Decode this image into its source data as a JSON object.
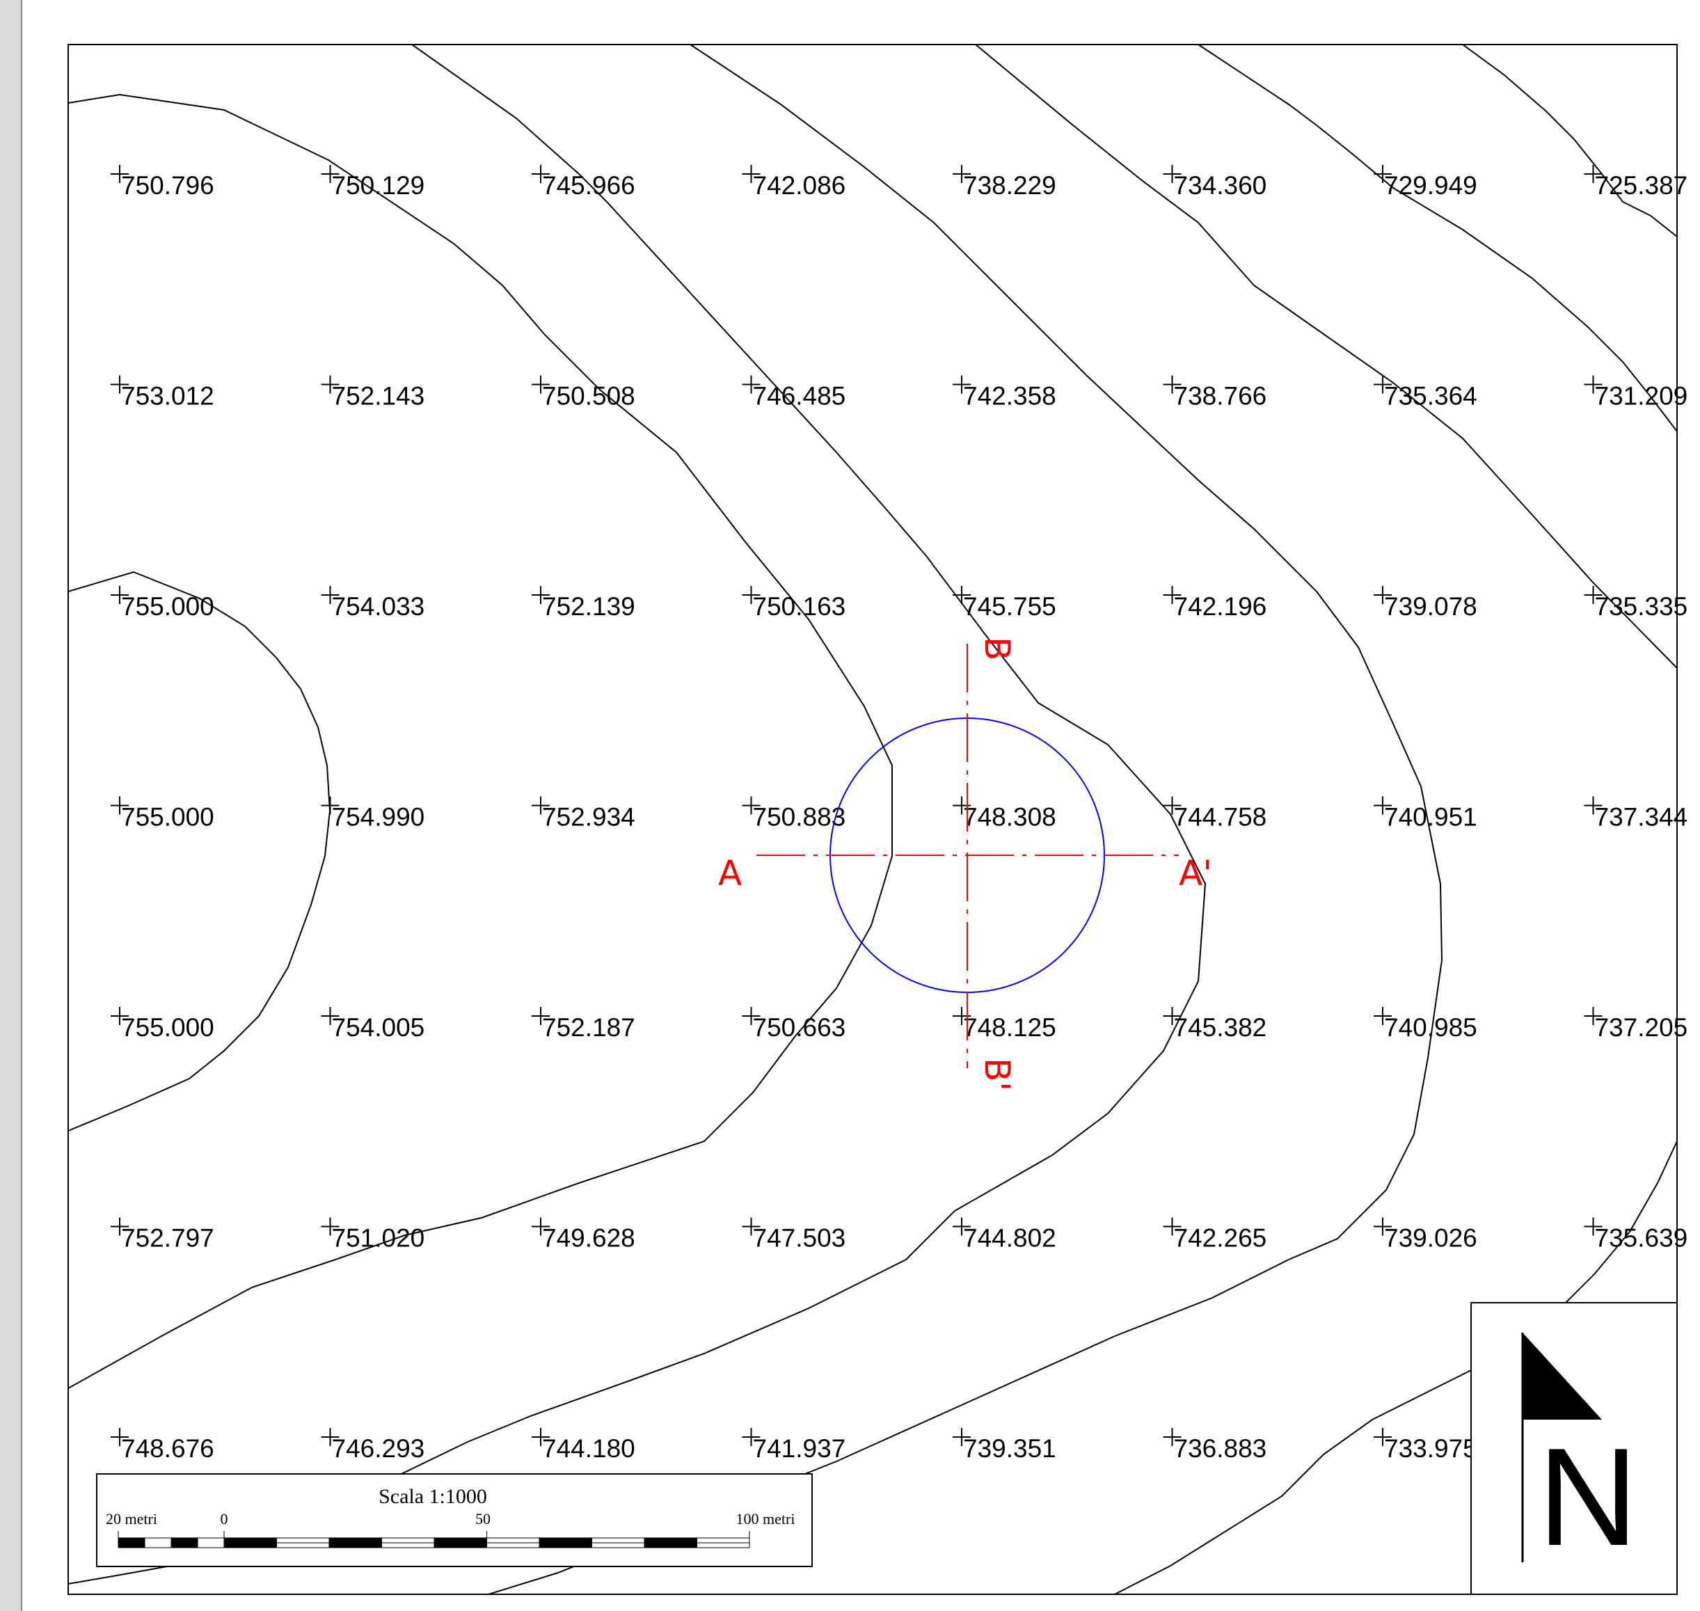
{
  "map": {
    "elevation_points": [
      {
        "row": 0,
        "col": 0,
        "value": "750.796"
      },
      {
        "row": 0,
        "col": 1,
        "value": "750.129"
      },
      {
        "row": 0,
        "col": 2,
        "value": "745.966"
      },
      {
        "row": 0,
        "col": 3,
        "value": "742.086"
      },
      {
        "row": 0,
        "col": 4,
        "value": "738.229"
      },
      {
        "row": 0,
        "col": 5,
        "value": "734.360"
      },
      {
        "row": 0,
        "col": 6,
        "value": "729.949"
      },
      {
        "row": 0,
        "col": 7,
        "value": "725.387"
      },
      {
        "row": 1,
        "col": 0,
        "value": "753.012"
      },
      {
        "row": 1,
        "col": 1,
        "value": "752.143"
      },
      {
        "row": 1,
        "col": 2,
        "value": "750.508"
      },
      {
        "row": 1,
        "col": 3,
        "value": "746.485"
      },
      {
        "row": 1,
        "col": 4,
        "value": "742.358"
      },
      {
        "row": 1,
        "col": 5,
        "value": "738.766"
      },
      {
        "row": 1,
        "col": 6,
        "value": "735.364"
      },
      {
        "row": 1,
        "col": 7,
        "value": "731.209"
      },
      {
        "row": 2,
        "col": 0,
        "value": "755.000"
      },
      {
        "row": 2,
        "col": 1,
        "value": "754.033"
      },
      {
        "row": 2,
        "col": 2,
        "value": "752.139"
      },
      {
        "row": 2,
        "col": 3,
        "value": "750.163"
      },
      {
        "row": 2,
        "col": 4,
        "value": "745.755"
      },
      {
        "row": 2,
        "col": 5,
        "value": "742.196"
      },
      {
        "row": 2,
        "col": 6,
        "value": "739.078"
      },
      {
        "row": 2,
        "col": 7,
        "value": "735.335"
      },
      {
        "row": 3,
        "col": 0,
        "value": "755.000"
      },
      {
        "row": 3,
        "col": 1,
        "value": "754.990"
      },
      {
        "row": 3,
        "col": 2,
        "value": "752.934"
      },
      {
        "row": 3,
        "col": 3,
        "value": "750.883"
      },
      {
        "row": 3,
        "col": 4,
        "value": "748.308"
      },
      {
        "row": 3,
        "col": 5,
        "value": "744.758"
      },
      {
        "row": 3,
        "col": 6,
        "value": "740.951"
      },
      {
        "row": 3,
        "col": 7,
        "value": "737.344"
      },
      {
        "row": 4,
        "col": 0,
        "value": "755.000"
      },
      {
        "row": 4,
        "col": 1,
        "value": "754.005"
      },
      {
        "row": 4,
        "col": 2,
        "value": "752.187"
      },
      {
        "row": 4,
        "col": 3,
        "value": "750.663"
      },
      {
        "row": 4,
        "col": 4,
        "value": "748.125"
      },
      {
        "row": 4,
        "col": 5,
        "value": "745.382"
      },
      {
        "row": 4,
        "col": 6,
        "value": "740.985"
      },
      {
        "row": 4,
        "col": 7,
        "value": "737.205"
      },
      {
        "row": 5,
        "col": 0,
        "value": "752.797"
      },
      {
        "row": 5,
        "col": 1,
        "value": "751.020"
      },
      {
        "row": 5,
        "col": 2,
        "value": "749.628"
      },
      {
        "row": 5,
        "col": 3,
        "value": "747.503"
      },
      {
        "row": 5,
        "col": 4,
        "value": "744.802"
      },
      {
        "row": 5,
        "col": 5,
        "value": "742.265"
      },
      {
        "row": 5,
        "col": 6,
        "value": "739.026"
      },
      {
        "row": 5,
        "col": 7,
        "value": "735.639"
      },
      {
        "row": 6,
        "col": 0,
        "value": "748.676"
      },
      {
        "row": 6,
        "col": 1,
        "value": "746.293"
      },
      {
        "row": 6,
        "col": 2,
        "value": "744.180"
      },
      {
        "row": 6,
        "col": 3,
        "value": "741.937"
      },
      {
        "row": 6,
        "col": 4,
        "value": "739.351"
      },
      {
        "row": 6,
        "col": 5,
        "value": "736.883"
      },
      {
        "row": 6,
        "col": 6,
        "value": "733.975"
      }
    ],
    "section_labels": {
      "a": "A",
      "a_prime": "A'",
      "b": "B",
      "b_prime": "B'"
    },
    "colors": {
      "contour": "#000000",
      "section_line": "#ff0000",
      "marker_circle": "#0000ff",
      "background": "#d9d9d9"
    }
  },
  "scale_bar": {
    "title": "Scala 1:1000",
    "labels": [
      "20 metri",
      "0",
      "50",
      "100 metri"
    ]
  },
  "north_arrow": {
    "label": "N"
  }
}
